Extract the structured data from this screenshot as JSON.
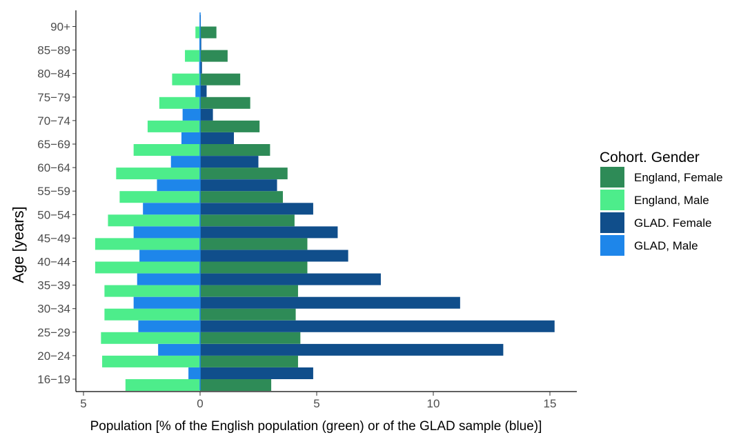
{
  "chart_data": {
    "type": "bar",
    "orientation": "horizontal",
    "layout": "population-pyramid",
    "title": "",
    "xlabel": "Population [% of the English population (green) or of the GLAD sample (blue)]",
    "ylabel": "Age [years]",
    "xlim": [
      -5,
      15
    ],
    "x_ticks": [
      -5,
      0,
      5,
      10,
      15
    ],
    "x_tick_labels": [
      "5",
      "0",
      "5",
      "10",
      "15"
    ],
    "grid": false,
    "legend_position": "right",
    "legend_title": "Cohort. Gender",
    "categories": [
      "16-19",
      "20-24",
      "25-29",
      "30-34",
      "35-39",
      "40-44",
      "45-49",
      "50-54",
      "55-59",
      "60-64",
      "65-69",
      "70-74",
      "75-79",
      "80-84",
      "85-89",
      "90+"
    ],
    "category_labels": [
      "16−19",
      "20−24",
      "25−29",
      "30−34",
      "35−39",
      "40−44",
      "45−49",
      "50−54",
      "55−59",
      "60−64",
      "65−69",
      "70−74",
      "75−79",
      "80−84",
      "85−89",
      "90+"
    ],
    "series": [
      {
        "name": "England, Female",
        "color": "#2e8b57",
        "values": [
          3.05,
          4.2,
          4.3,
          4.1,
          4.2,
          4.6,
          4.6,
          4.05,
          3.55,
          3.75,
          3.0,
          2.55,
          2.15,
          1.72,
          1.18,
          0.7
        ]
      },
      {
        "name": "England, Male",
        "color": "#4ded8b",
        "values": [
          -3.2,
          -4.2,
          -4.25,
          -4.1,
          -4.1,
          -4.5,
          -4.5,
          -3.95,
          -3.45,
          -3.6,
          -2.85,
          -2.25,
          -1.75,
          -1.2,
          -0.65,
          -0.2
        ]
      },
      {
        "name": "GLAD. Female",
        "color": "#104e8b",
        "values": [
          4.85,
          13.0,
          15.2,
          11.15,
          7.75,
          6.35,
          5.9,
          4.85,
          3.3,
          2.5,
          1.45,
          0.55,
          0.28,
          0.08,
          0.05,
          0.03
        ]
      },
      {
        "name": "GLAD, Male",
        "color": "#1e86ea",
        "values": [
          -0.5,
          -1.8,
          -2.65,
          -2.85,
          -2.7,
          -2.6,
          -2.85,
          -2.45,
          -1.85,
          -1.25,
          -0.8,
          -0.75,
          -0.2,
          -0.04,
          -0.03,
          -0.02
        ]
      }
    ],
    "legend_labels": [
      "England, Female",
      "England, Male",
      "GLAD. Female",
      "GLAD, Male"
    ]
  }
}
